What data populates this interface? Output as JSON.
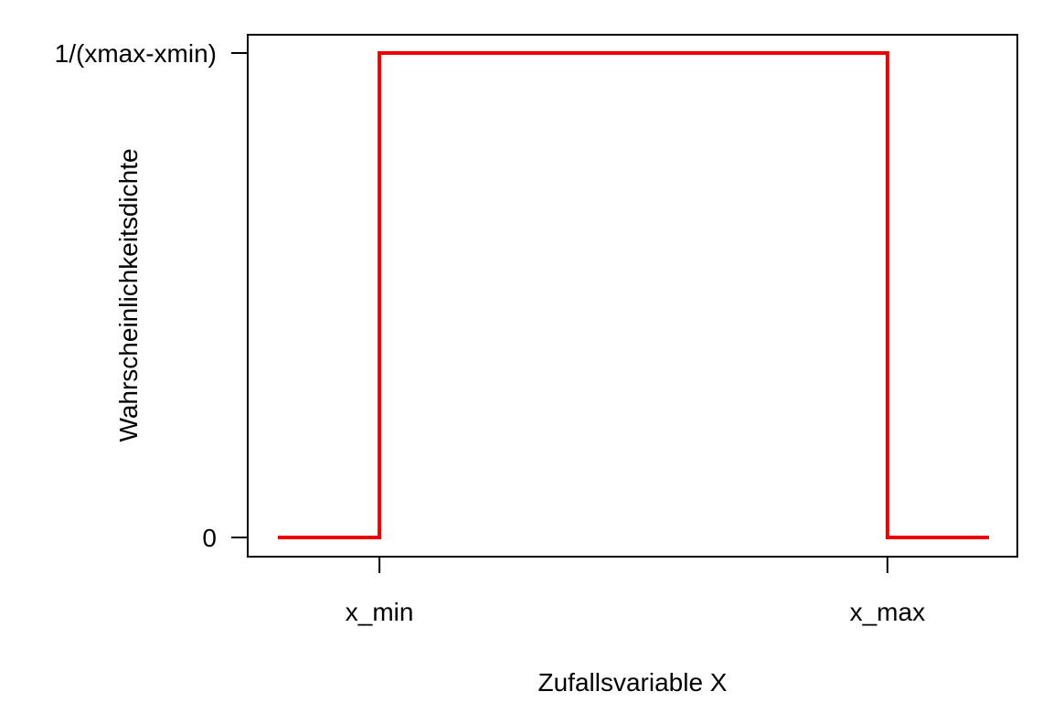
{
  "chart_data": {
    "type": "line",
    "title": "",
    "xlabel": "Zufallsvariable X",
    "ylabel": "Wahrscheinlichkeitsdichte",
    "x_ticks": [
      {
        "value": 1,
        "label": "x_min"
      },
      {
        "value": 6,
        "label": "x_max"
      }
    ],
    "y_ticks": [
      {
        "value": 0,
        "label": "0"
      },
      {
        "value": 1,
        "label": "1/(xmax-xmin)"
      }
    ],
    "xlim": [
      0,
      7
    ],
    "ylim": [
      0,
      1
    ],
    "grid": false,
    "series": [
      {
        "color": "#ee0000",
        "points": [
          {
            "x": 0,
            "y": 0
          },
          {
            "x": 1,
            "y": 0
          },
          {
            "x": 1,
            "y": 1
          },
          {
            "x": 6,
            "y": 1
          },
          {
            "x": 6,
            "y": 0
          },
          {
            "x": 7,
            "y": 0
          }
        ]
      }
    ]
  }
}
